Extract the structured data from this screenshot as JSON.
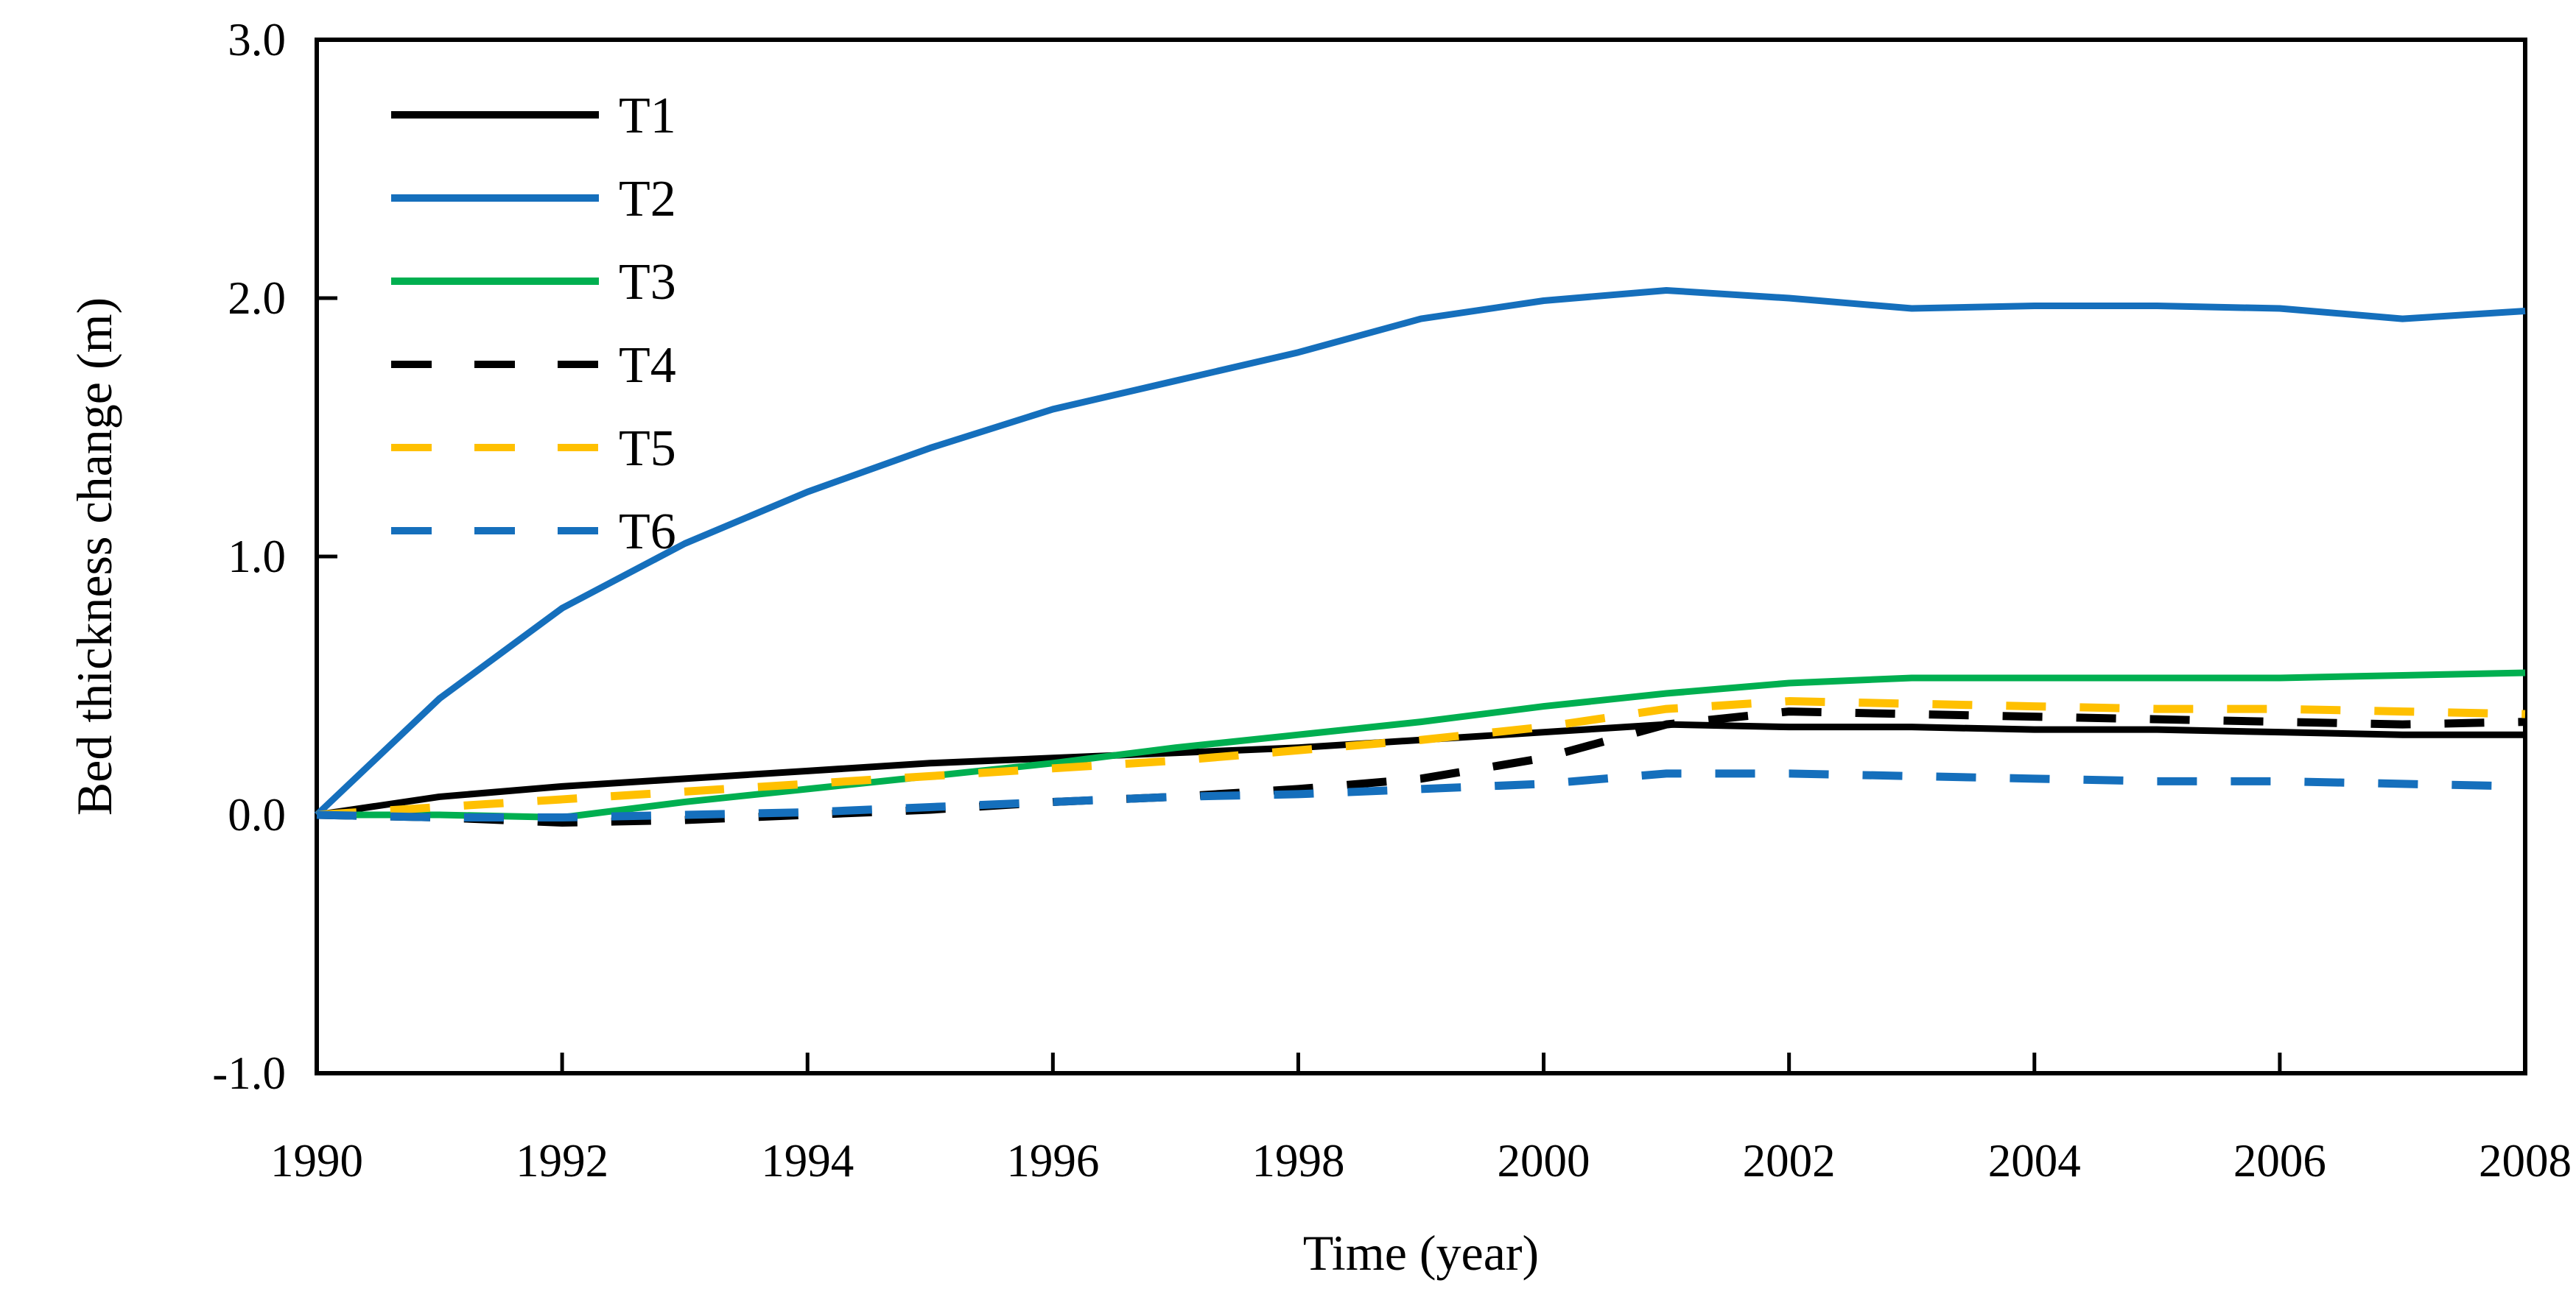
{
  "chart_data": {
    "type": "line",
    "title": "",
    "xlabel": "Time (year)",
    "ylabel": "Bed thickness change (m)",
    "xlim": [
      1990,
      2008
    ],
    "ylim": [
      -1.0,
      3.0
    ],
    "grid": false,
    "legend_position": "top-left-inside",
    "axis_color": "#000000",
    "x_ticks": [
      1990,
      1992,
      1994,
      1996,
      1998,
      2000,
      2002,
      2004,
      2006,
      2008
    ],
    "x_tick_labels": [
      "1990",
      "1992",
      "1994",
      "1996",
      "1998",
      "2000",
      "2002",
      "2004",
      "2006",
      "2008"
    ],
    "y_ticks": [
      -1.0,
      0.0,
      1.0,
      2.0,
      3.0
    ],
    "y_tick_labels": [
      "-1.0",
      "0.0",
      "1.0",
      "2.0",
      "3.0"
    ],
    "x": [
      1990,
      1991,
      1992,
      1993,
      1994,
      1995,
      1996,
      1997,
      1998,
      1999,
      2000,
      2001,
      2002,
      2003,
      2004,
      2005,
      2006,
      2007,
      2008
    ],
    "series": [
      {
        "name": "T1",
        "color": "#000000",
        "style": "solid",
        "values": [
          0.0,
          0.07,
          0.11,
          0.14,
          0.17,
          0.2,
          0.22,
          0.24,
          0.26,
          0.29,
          0.32,
          0.35,
          0.34,
          0.34,
          0.33,
          0.33,
          0.32,
          0.31,
          0.31
        ]
      },
      {
        "name": "T2",
        "color": "#156FBC",
        "style": "solid",
        "values": [
          0.0,
          0.45,
          0.8,
          1.05,
          1.25,
          1.42,
          1.57,
          1.68,
          1.79,
          1.92,
          1.99,
          2.03,
          2.0,
          1.96,
          1.97,
          1.97,
          1.96,
          1.92,
          1.95
        ]
      },
      {
        "name": "T3",
        "color": "#00AF50",
        "style": "solid",
        "values": [
          0.0,
          0.0,
          -0.01,
          0.05,
          0.1,
          0.15,
          0.2,
          0.26,
          0.31,
          0.36,
          0.42,
          0.47,
          0.51,
          0.53,
          0.53,
          0.53,
          0.53,
          0.54,
          0.55
        ]
      },
      {
        "name": "T4",
        "color": "#000000",
        "style": "dashed",
        "values": [
          0.0,
          -0.01,
          -0.03,
          -0.02,
          0.0,
          0.02,
          0.05,
          0.07,
          0.1,
          0.14,
          0.22,
          0.35,
          0.4,
          0.39,
          0.38,
          0.37,
          0.36,
          0.35,
          0.36
        ]
      },
      {
        "name": "T5",
        "color": "#FFC000",
        "style": "dashed",
        "values": [
          0.0,
          0.03,
          0.06,
          0.09,
          0.12,
          0.15,
          0.18,
          0.21,
          0.25,
          0.29,
          0.34,
          0.41,
          0.44,
          0.43,
          0.42,
          0.41,
          0.41,
          0.4,
          0.39
        ]
      },
      {
        "name": "T6",
        "color": "#156FBC",
        "style": "dashed",
        "values": [
          0.0,
          -0.01,
          -0.01,
          0.0,
          0.01,
          0.03,
          0.05,
          0.07,
          0.08,
          0.1,
          0.12,
          0.16,
          0.16,
          0.15,
          0.14,
          0.13,
          0.13,
          0.12,
          0.11
        ]
      }
    ]
  }
}
